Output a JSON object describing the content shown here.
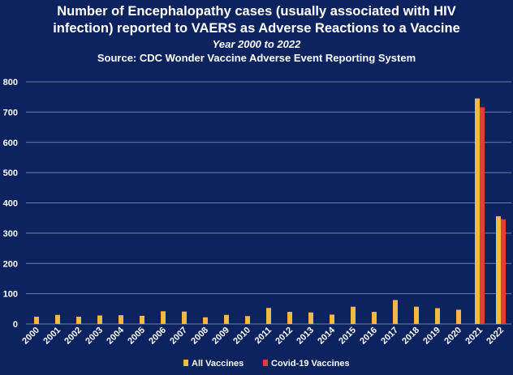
{
  "colors": {
    "background": "#0c2360",
    "gridline": "#6f7ea6",
    "all_vaccines": "#f4b942",
    "covid_vaccines": "#e83a3a"
  },
  "chart_data": {
    "type": "bar",
    "title_line1": "Number of Encephalopathy cases (usually associated with HIV",
    "title_line2": "infection) reported to VAERS as Adverse Reactions to a Vaccine",
    "subtitle": "Year 2000 to 2022",
    "source": "Source: CDC Wonder Vaccine Adverse Event Reporting System",
    "xlabel": "",
    "ylabel": "",
    "ylim": [
      0,
      800
    ],
    "yticks": [
      0,
      100,
      200,
      300,
      400,
      500,
      600,
      700,
      800
    ],
    "grid": true,
    "legend_position": "bottom",
    "categories": [
      "2000",
      "2001",
      "2002",
      "2003",
      "2004",
      "2005",
      "2006",
      "2007",
      "2008",
      "2009",
      "2010",
      "2011",
      "2012",
      "2013",
      "2014",
      "2015",
      "2016",
      "2017",
      "2018",
      "2019",
      "2020",
      "2021",
      "2022"
    ],
    "series": [
      {
        "name": "All Vaccines",
        "color": "#f4b942",
        "values": [
          24,
          30,
          24,
          28,
          29,
          27,
          42,
          41,
          22,
          30,
          26,
          53,
          40,
          38,
          31,
          57,
          40,
          79,
          57,
          52,
          47,
          745,
          356
        ]
      },
      {
        "name": "Covid-19 Vaccines",
        "color": "#e83a3a",
        "values": [
          null,
          null,
          null,
          null,
          null,
          null,
          null,
          null,
          null,
          null,
          null,
          null,
          null,
          null,
          null,
          null,
          null,
          null,
          null,
          null,
          null,
          716,
          346
        ]
      }
    ]
  }
}
